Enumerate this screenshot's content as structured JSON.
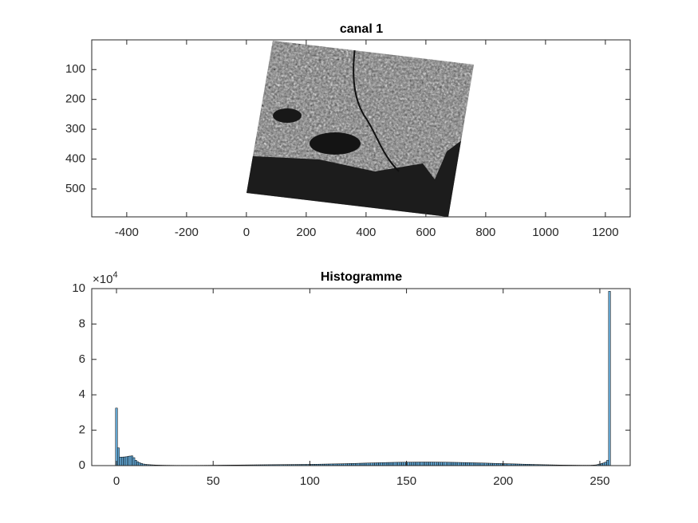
{
  "chart_data": [
    {
      "type": "image",
      "title": "canal 1",
      "xlim": [
        -517,
        1283
      ],
      "xticks": [
        -400,
        -200,
        0,
        200,
        400,
        600,
        800,
        1000,
        1200
      ],
      "ylim": [
        0.5,
        593.5
      ],
      "yticks": [
        100,
        200,
        300,
        400,
        500
      ],
      "y_reverse": true
    },
    {
      "type": "histogram",
      "title": "Histogramme",
      "y_multiplier": {
        "base": "×10",
        "exponent": "4"
      },
      "color": "#0072bd",
      "edge_color": "#000000",
      "xlim": [
        -12.8,
        265.7
      ],
      "xticks": [
        0,
        50,
        100,
        150,
        200,
        250
      ],
      "ylim": [
        0,
        100000
      ],
      "yticks": [
        {
          "value": 0,
          "label": "0"
        },
        {
          "value": 20000,
          "label": "2"
        },
        {
          "value": 40000,
          "label": "4"
        },
        {
          "value": 60000,
          "label": "6"
        },
        {
          "value": 80000,
          "label": "8"
        },
        {
          "value": 100000,
          "label": "10"
        }
      ],
      "bins": [
        -0.5,
        0.5,
        1.5,
        2.5,
        3.5,
        4.5,
        5.5,
        6.5,
        7.5,
        8.5,
        9.5,
        10.5,
        11.5,
        12.5,
        13.5,
        14.5,
        15.5,
        16.5,
        17.5,
        18.5,
        19.5,
        20.5,
        21.5,
        22.5,
        23.5,
        24.5,
        25.5,
        26.5,
        27.5,
        28.5,
        29.5,
        30.5,
        31.5,
        32.5,
        33.5,
        34.5,
        35.5,
        36.5,
        37.5,
        38.5,
        39.5,
        40.5,
        41.5,
        42.5,
        43.5,
        44.5,
        45.5,
        46.5,
        47.5,
        48.5,
        49.5,
        50.5,
        51.5,
        52.5,
        53.5,
        54.5,
        55.5,
        56.5,
        57.5,
        58.5,
        59.5,
        60.5,
        61.5,
        62.5,
        63.5,
        64.5,
        65.5,
        66.5,
        67.5,
        68.5,
        69.5,
        70.5,
        71.5,
        72.5,
        73.5,
        74.5,
        75.5,
        76.5,
        77.5,
        78.5,
        79.5,
        80.5,
        81.5,
        82.5,
        83.5,
        84.5,
        85.5,
        86.5,
        87.5,
        88.5,
        89.5,
        90.5,
        91.5,
        92.5,
        93.5,
        94.5,
        95.5,
        96.5,
        97.5,
        98.5,
        99.5,
        100.5,
        101.5,
        102.5,
        103.5,
        104.5,
        105.5,
        106.5,
        107.5,
        108.5,
        109.5,
        110.5,
        111.5,
        112.5,
        113.5,
        114.5,
        115.5,
        116.5,
        117.5,
        118.5,
        119.5,
        120.5,
        121.5,
        122.5,
        123.5,
        124.5,
        125.5,
        126.5,
        127.5,
        128.5,
        129.5,
        130.5,
        131.5,
        132.5,
        133.5,
        134.5,
        135.5,
        136.5,
        137.5,
        138.5,
        139.5,
        140.5,
        141.5,
        142.5,
        143.5,
        144.5,
        145.5,
        146.5,
        147.5,
        148.5,
        149.5,
        150.5,
        151.5,
        152.5,
        153.5,
        154.5,
        155.5,
        156.5,
        157.5,
        158.5,
        159.5,
        160.5,
        161.5,
        162.5,
        163.5,
        164.5,
        165.5,
        166.5,
        167.5,
        168.5,
        169.5,
        170.5,
        171.5,
        172.5,
        173.5,
        174.5,
        175.5,
        176.5,
        177.5,
        178.5,
        179.5,
        180.5,
        181.5,
        182.5,
        183.5,
        184.5,
        185.5,
        186.5,
        187.5,
        188.5,
        189.5,
        190.5,
        191.5,
        192.5,
        193.5,
        194.5,
        195.5,
        196.5,
        197.5,
        198.5,
        199.5,
        200.5,
        201.5,
        202.5,
        203.5,
        204.5,
        205.5,
        206.5,
        207.5,
        208.5,
        209.5,
        210.5,
        211.5,
        212.5,
        213.5,
        214.5,
        215.5,
        216.5,
        217.5,
        218.5,
        219.5,
        220.5,
        221.5,
        222.5,
        223.5,
        224.5,
        225.5,
        226.5,
        227.5,
        228.5,
        229.5,
        230.5,
        231.5,
        232.5,
        233.5,
        234.5,
        235.5,
        236.5,
        237.5,
        238.5,
        239.5,
        240.5,
        241.5,
        242.5,
        243.5,
        244.5,
        245.5,
        246.5,
        247.5,
        248.5,
        249.5,
        250.5,
        251.5,
        252.5,
        253.5,
        254.5,
        255.5
      ],
      "values": [
        32500,
        10000,
        4800,
        4800,
        4900,
        5000,
        5200,
        5400,
        5500,
        4500,
        3000,
        2200,
        1600,
        1200,
        900,
        700,
        600,
        520,
        450,
        400,
        350,
        310,
        280,
        250,
        230,
        210,
        200,
        190,
        180,
        170,
        160,
        150,
        150,
        150,
        150,
        150,
        150,
        150,
        150,
        150,
        150,
        160,
        160,
        160,
        170,
        170,
        180,
        180,
        190,
        200,
        210,
        220,
        230,
        240,
        250,
        260,
        270,
        280,
        290,
        300,
        310,
        320,
        330,
        340,
        350,
        360,
        370,
        380,
        390,
        400,
        410,
        420,
        430,
        440,
        450,
        460,
        470,
        480,
        490,
        500,
        510,
        520,
        530,
        540,
        550,
        560,
        570,
        580,
        590,
        600,
        610,
        620,
        630,
        640,
        650,
        660,
        670,
        680,
        690,
        700,
        710,
        730,
        750,
        770,
        790,
        810,
        830,
        850,
        870,
        890,
        910,
        930,
        950,
        970,
        990,
        1010,
        1030,
        1060,
        1090,
        1120,
        1150,
        1180,
        1210,
        1240,
        1270,
        1300,
        1330,
        1360,
        1390,
        1420,
        1450,
        1480,
        1510,
        1540,
        1570,
        1600,
        1630,
        1660,
        1690,
        1720,
        1750,
        1770,
        1790,
        1810,
        1830,
        1850,
        1870,
        1890,
        1900,
        1910,
        1920,
        1930,
        1940,
        1950,
        1960,
        1970,
        1980,
        1990,
        2000,
        2000,
        2000,
        2000,
        2000,
        1990,
        1980,
        1970,
        1960,
        1950,
        1940,
        1930,
        1920,
        1900,
        1880,
        1860,
        1840,
        1820,
        1800,
        1780,
        1760,
        1740,
        1720,
        1700,
        1670,
        1640,
        1610,
        1580,
        1550,
        1520,
        1490,
        1460,
        1430,
        1400,
        1370,
        1340,
        1310,
        1280,
        1250,
        1220,
        1190,
        1160,
        1130,
        1100,
        1070,
        1040,
        1010,
        980,
        950,
        920,
        890,
        860,
        830,
        800,
        770,
        740,
        710,
        680,
        650,
        620,
        590,
        560,
        530,
        500,
        480,
        460,
        440,
        420,
        400,
        380,
        360,
        340,
        320,
        300,
        290,
        280,
        270,
        260,
        250,
        240,
        230,
        220,
        210,
        200,
        200,
        200,
        200,
        200,
        250,
        300,
        400,
        600,
        900,
        1200,
        1500,
        2000,
        3000,
        98500
      ]
    }
  ]
}
